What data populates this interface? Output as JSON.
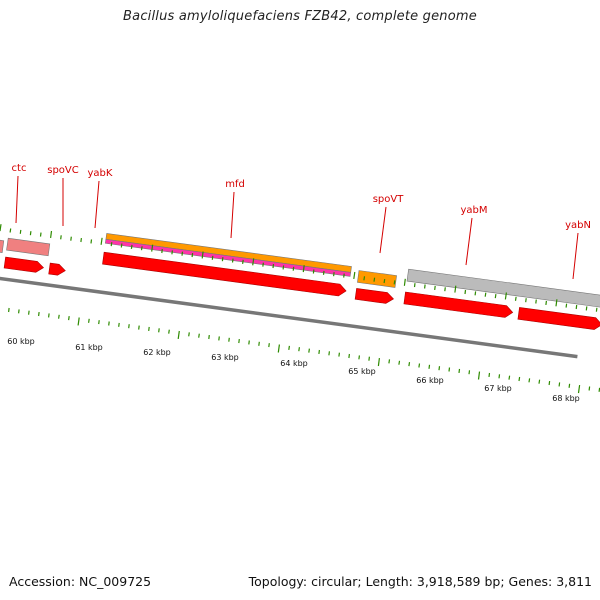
{
  "title": "Bacillus amyloliquefaciens FZB42, complete genome",
  "accession": "Accession: NC_009725",
  "summary": "Topology: circular; Length: 3,918,589 bp; Genes: 3,811",
  "colors": {
    "cds_red": "#ff0000",
    "pink": "#f08080",
    "orange": "#ff9900",
    "magenta": "#ff33aa",
    "grey_feature": "#bbbbbb",
    "backbone": "#777777",
    "ticks": "#2e8b00",
    "gene_label": "#d40000"
  },
  "gene_labels": [
    {
      "name": "ctc"
    },
    {
      "name": "spoVC"
    },
    {
      "name": "yabK"
    },
    {
      "name": "mfd"
    },
    {
      "name": "spoVT"
    },
    {
      "name": "yabM"
    },
    {
      "name": "yabN"
    }
  ],
  "scale_labels": [
    "60 kbp",
    "61 kbp",
    "62 kbp",
    "63 kbp",
    "64 kbp",
    "65 kbp",
    "66 kbp",
    "67 kbp",
    "68 kbp"
  ]
}
